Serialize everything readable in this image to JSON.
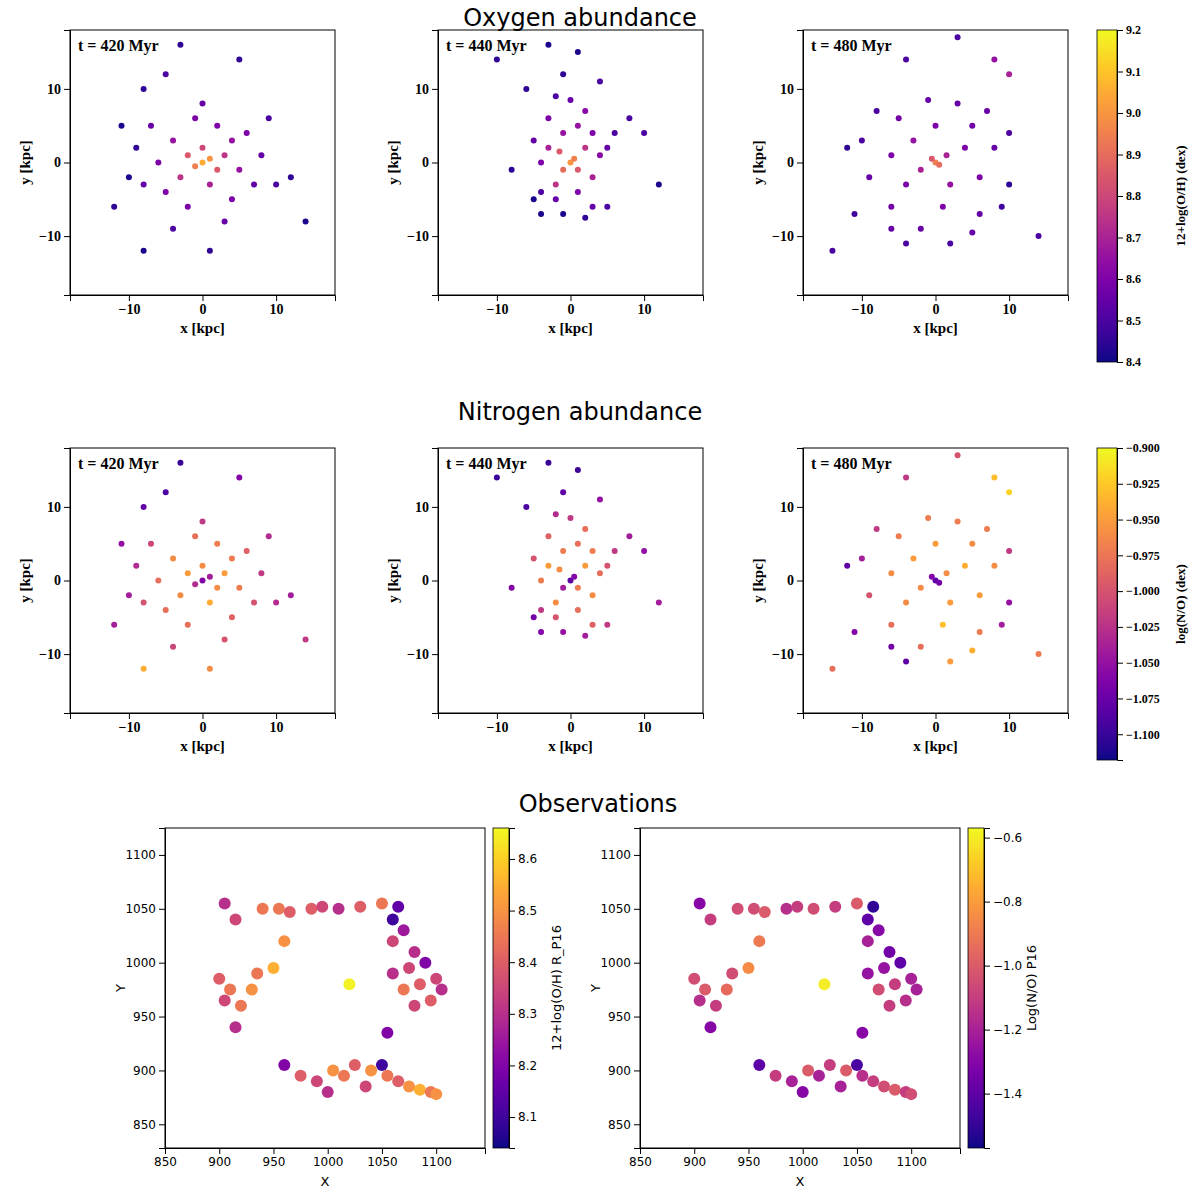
{
  "section_titles": [
    "Oxygen abundance",
    "Nitrogen abundance",
    "Observations"
  ],
  "chart_data": [
    {
      "type": "scatter",
      "annotation": "t = 420 Myr",
      "x_label": "x [kpc]",
      "y_label": "y [kpc]",
      "xlim": [
        -18,
        18
      ],
      "ylim": [
        -18,
        18
      ],
      "xticks": [
        {
          "value": -10,
          "label": "−10"
        },
        0,
        10
      ],
      "yticks": [
        {
          "value": -10,
          "label": "−10"
        },
        0,
        10
      ],
      "x": [
        0,
        1,
        -1,
        2,
        -2,
        0,
        3,
        -3,
        1,
        4,
        -4,
        5,
        -5,
        2,
        -1,
        4,
        -6,
        6,
        -2,
        7,
        -7,
        -8,
        3,
        -4,
        8,
        0,
        -9,
        -10,
        -11,
        -8,
        -5,
        10,
        12,
        9,
        -3,
        5,
        -12,
        14,
        -8,
        1
      ],
      "values": [
        0,
        0.5,
        -0.5,
        -1,
        1,
        2,
        1,
        -2,
        -3,
        3,
        3,
        -1,
        -4,
        5,
        6,
        -5,
        0,
        4,
        -6,
        -3,
        5,
        -3,
        -8,
        -9,
        1,
        8,
        2,
        -2,
        5,
        10,
        12,
        -3,
        -2,
        6,
        16,
        14,
        -6,
        -8,
        -12,
        -12
      ],
      "color_values": [
        9.05,
        9.0,
        8.95,
        8.85,
        8.85,
        8.8,
        8.75,
        8.75,
        8.7,
        8.65,
        8.65,
        8.65,
        8.6,
        8.6,
        8.6,
        8.6,
        8.6,
        8.6,
        8.6,
        8.55,
        8.55,
        8.55,
        8.55,
        8.5,
        8.55,
        8.55,
        8.45,
        8.42,
        8.42,
        8.45,
        8.5,
        8.5,
        8.45,
        8.5,
        8.45,
        8.45,
        8.45,
        8.42,
        8.42,
        8.45
      ]
    },
    {
      "type": "scatter",
      "annotation": "t = 440 Myr",
      "x_label": "x [kpc]",
      "y_label": "y [kpc]",
      "xlim": [
        -18,
        18
      ],
      "ylim": [
        -18,
        18
      ],
      "xticks": [
        {
          "value": -10,
          "label": "−10"
        },
        0,
        10
      ],
      "yticks": [
        {
          "value": -10,
          "label": "−10"
        },
        0,
        10
      ],
      "x": [
        0,
        0.5,
        -1,
        1,
        -1.5,
        2,
        -2,
        -3,
        3,
        -1,
        1,
        -3,
        2,
        -4,
        4,
        -2,
        1,
        3,
        -4,
        -5,
        0,
        -2,
        3,
        5,
        6,
        8,
        10,
        -4,
        -1,
        2,
        5,
        -5,
        -1,
        1,
        -3,
        -6,
        4,
        -8,
        12,
        -10
      ],
      "values": [
        0,
        0.5,
        -1,
        -1,
        1.5,
        2,
        -3,
        2,
        -2,
        4,
        5,
        6,
        7,
        0,
        1,
        -5,
        -4,
        -6,
        -4,
        3,
        8.5,
        9,
        4,
        2,
        4,
        6,
        4,
        -7,
        -7,
        -7.5,
        -6,
        -5,
        12,
        15,
        16,
        10,
        11,
        -1,
        -3,
        14
      ],
      "color_values": [
        9.0,
        8.95,
        8.9,
        8.85,
        8.85,
        8.75,
        8.75,
        8.7,
        8.7,
        8.65,
        8.65,
        8.6,
        8.62,
        8.6,
        8.62,
        8.55,
        8.6,
        8.55,
        8.5,
        8.55,
        8.55,
        8.5,
        8.6,
        8.55,
        8.5,
        8.5,
        8.5,
        8.42,
        8.42,
        8.45,
        8.5,
        8.42,
        8.45,
        8.42,
        8.42,
        8.45,
        8.5,
        8.45,
        8.42,
        8.45
      ]
    },
    {
      "type": "scatter",
      "annotation": "t = 480 Myr",
      "x_label": "x [kpc]",
      "y_label": "y [kpc]",
      "xlim": [
        -18,
        18
      ],
      "ylim": [
        -18,
        18
      ],
      "xticks": [
        {
          "value": -10,
          "label": "−10"
        },
        0,
        10
      ],
      "yticks": [
        {
          "value": -10,
          "label": "−10"
        },
        0,
        10
      ],
      "x": [
        0,
        0.5,
        -0.5,
        1.5,
        -2,
        2,
        -3,
        4,
        -4,
        0,
        1,
        -6,
        6,
        5,
        -5,
        -6,
        6,
        -2,
        3,
        -1,
        8,
        -9,
        -10,
        -12,
        -11,
        10,
        10,
        9,
        -4,
        2,
        -6,
        7,
        -8,
        5,
        8,
        10,
        3,
        -4,
        14,
        -14
      ],
      "values": [
        0,
        -0.3,
        0.5,
        1,
        -1,
        -3,
        3,
        2,
        -3,
        5,
        -6,
        1,
        -2,
        5,
        6,
        -6,
        -7,
        -9,
        8,
        8.5,
        2,
        -2,
        3,
        2,
        -7,
        -3,
        4,
        -6,
        -11,
        -11,
        -9,
        7,
        7,
        -9.5,
        14,
        12,
        17,
        14,
        -10,
        -12
      ],
      "color_values": [
        8.95,
        8.9,
        8.85,
        8.7,
        8.7,
        8.65,
        8.65,
        8.6,
        8.6,
        8.6,
        8.6,
        8.6,
        8.6,
        8.58,
        8.58,
        8.58,
        8.55,
        8.55,
        8.55,
        8.55,
        8.55,
        8.55,
        8.5,
        8.45,
        8.48,
        8.45,
        8.5,
        8.48,
        8.5,
        8.5,
        8.55,
        8.55,
        8.5,
        8.55,
        8.65,
        8.7,
        8.5,
        8.5,
        8.5,
        8.5
      ],
      "colorbar": {
        "label": "12+log(O/H) (dex)",
        "range": [
          8.4,
          9.2
        ],
        "ticks": [
          8.4,
          8.5,
          8.6,
          8.7,
          8.8,
          8.9,
          {
            "value": 9,
            "label": "9.0"
          },
          9.1,
          9.2
        ]
      }
    },
    {
      "type": "scatter",
      "annotation": "t = 420 Myr",
      "x_label": "x [kpc]",
      "y_label": "y [kpc]",
      "xlim": [
        -18,
        18
      ],
      "ylim": [
        -18,
        18
      ],
      "xticks": [
        {
          "value": -10,
          "label": "−10"
        },
        0,
        10
      ],
      "yticks": [
        {
          "value": -10,
          "label": "−10"
        },
        0,
        10
      ],
      "x": [
        0,
        1,
        -1,
        2,
        -2,
        0,
        3,
        -3,
        1,
        4,
        -4,
        5,
        -5,
        2,
        -1,
        4,
        -6,
        6,
        -2,
        7,
        -7,
        -8,
        3,
        -4,
        8,
        0,
        -9,
        -10,
        -11,
        -8,
        -5,
        10,
        12,
        9,
        -3,
        5,
        -12,
        14,
        -8,
        1
      ],
      "values": [
        0,
        0.5,
        -0.5,
        -1,
        1,
        2,
        1,
        -2,
        -3,
        3,
        3,
        -1,
        -4,
        5,
        6,
        -5,
        0,
        4,
        -6,
        -3,
        5,
        -3,
        -8,
        -9,
        1,
        8,
        2,
        -2,
        5,
        10,
        12,
        -3,
        -2,
        6,
        16,
        14,
        -6,
        -8,
        -12,
        -12
      ],
      "color_values": [
        -1.06,
        -1.04,
        -1.03,
        -0.96,
        -0.95,
        -0.96,
        -0.95,
        -0.96,
        -0.94,
        -0.97,
        -0.96,
        -0.97,
        -0.98,
        -0.97,
        -0.98,
        -0.99,
        -0.98,
        -0.99,
        -0.98,
        -1.0,
        -1.01,
        -1.0,
        -1.0,
        -1.01,
        -1.02,
        -1.02,
        -1.03,
        -1.04,
        -1.05,
        -1.08,
        -1.09,
        -1.03,
        -1.04,
        -1.03,
        -1.1,
        -1.06,
        -1.04,
        -1.02,
        -0.94,
        -0.96
      ]
    },
    {
      "type": "scatter",
      "annotation": "t = 440 Myr",
      "x_label": "x [kpc]",
      "y_label": "y [kpc]",
      "xlim": [
        -18,
        18
      ],
      "ylim": [
        -18,
        18
      ],
      "xticks": [
        {
          "value": -10,
          "label": "−10"
        },
        0,
        10
      ],
      "yticks": [
        {
          "value": -10,
          "label": "−10"
        },
        0,
        10
      ],
      "x": [
        0,
        0.5,
        -1,
        1,
        -1.5,
        2,
        -2,
        -3,
        3,
        -1,
        1,
        -3,
        2,
        -4,
        4,
        -2,
        1,
        3,
        -4,
        -5,
        0,
        -2,
        3,
        5,
        6,
        8,
        10,
        -4,
        -1,
        2,
        5,
        -5,
        -1,
        1,
        -3,
        -6,
        4,
        -8,
        12,
        -10
      ],
      "values": [
        0,
        0.5,
        -1,
        -1,
        1.5,
        2,
        -3,
        2,
        -2,
        4,
        5,
        6,
        7,
        0,
        1,
        -5,
        -4,
        -6,
        -4,
        3,
        8.5,
        9,
        4,
        2,
        4,
        6,
        4,
        -7,
        -7,
        -7.5,
        -6,
        -5,
        12,
        15,
        16,
        10,
        11,
        -1,
        -3,
        14
      ],
      "color_values": [
        -1.08,
        -1.06,
        -1.04,
        -0.97,
        -0.96,
        -0.95,
        -0.96,
        -0.95,
        -0.96,
        -0.97,
        -0.98,
        -0.99,
        -0.98,
        -0.97,
        -0.98,
        -1.0,
        -0.98,
        -0.99,
        -1.02,
        -1.0,
        -1.02,
        -1.03,
        -0.97,
        -1.0,
        -1.02,
        -1.04,
        -1.05,
        -1.06,
        -1.05,
        -1.04,
        -1.02,
        -1.07,
        -1.08,
        -1.1,
        -1.1,
        -1.09,
        -1.05,
        -1.06,
        -1.04,
        -1.1
      ]
    },
    {
      "type": "scatter",
      "annotation": "t = 480 Myr",
      "x_label": "x [kpc]",
      "y_label": "y [kpc]",
      "xlim": [
        -18,
        18
      ],
      "ylim": [
        -18,
        18
      ],
      "xticks": [
        {
          "value": -10,
          "label": "−10"
        },
        0,
        10
      ],
      "yticks": [
        {
          "value": -10,
          "label": "−10"
        },
        0,
        10
      ],
      "x": [
        0,
        0.5,
        -0.5,
        1.5,
        -2,
        2,
        -3,
        4,
        -4,
        0,
        1,
        -6,
        6,
        5,
        -5,
        -6,
        6,
        -2,
        3,
        -1,
        8,
        -9,
        -10,
        -12,
        -11,
        10,
        10,
        9,
        -4,
        2,
        -6,
        7,
        -8,
        5,
        8,
        10,
        3,
        -4,
        14,
        -14
      ],
      "values": [
        0,
        -0.3,
        0.5,
        1,
        -1,
        -3,
        3,
        2,
        -3,
        5,
        -6,
        1,
        -2,
        5,
        6,
        -6,
        -7,
        -9,
        8,
        8.5,
        2,
        -2,
        3,
        2,
        -7,
        -3,
        4,
        -6,
        -11,
        -11,
        -9,
        7,
        7,
        -9.5,
        14,
        12,
        17,
        14,
        -10,
        -12
      ],
      "color_values": [
        -1.08,
        -1.07,
        -1.06,
        -0.96,
        -0.96,
        -0.95,
        -0.95,
        -0.94,
        -0.96,
        -0.95,
        -0.93,
        -0.96,
        -0.95,
        -0.96,
        -0.97,
        -0.98,
        -0.97,
        -0.98,
        -0.97,
        -0.97,
        -0.96,
        -1.0,
        -1.04,
        -1.08,
        -1.06,
        -1.05,
        -1.02,
        -1.04,
        -1.08,
        -0.95,
        -1.07,
        -0.97,
        -1.02,
        -0.94,
        -0.93,
        -0.92,
        -1.0,
        -1.02,
        -0.97,
        -0.98
      ],
      "colorbar": {
        "label": "log(N/O) (dex)",
        "range": [
          -1.118,
          -0.9
        ],
        "ticks": [
          {
            "value": -1.1,
            "label": "−1.100"
          },
          {
            "value": -1.075,
            "label": "−1.075"
          },
          {
            "value": -1.05,
            "label": "−1.050"
          },
          {
            "value": -1.025,
            "label": "−1.025"
          },
          {
            "value": -1,
            "label": "−1.000"
          },
          {
            "value": -0.975,
            "label": "−0.975"
          },
          {
            "value": -0.95,
            "label": "−0.950"
          },
          {
            "value": -0.925,
            "label": "−0.925"
          },
          {
            "value": -0.9,
            "label": "−0.900"
          }
        ]
      }
    },
    {
      "type": "scatter",
      "x_label": "X",
      "y_label": "Y",
      "xlim": [
        850,
        1145
      ],
      "ylim": [
        828,
        1125
      ],
      "xticks": [
        850,
        900,
        950,
        1000,
        1050,
        1100
      ],
      "yticks": [
        850,
        900,
        950,
        1000,
        1050,
        1100
      ],
      "x": [
        905,
        915,
        940,
        955,
        965,
        985,
        995,
        1010,
        1030,
        1050,
        1060,
        1065,
        1070,
        1060,
        1080,
        1075,
        1090,
        1085,
        1100,
        1070,
        1095,
        1080,
        1105,
        1060,
        900,
        910,
        920,
        905,
        930,
        935,
        950,
        915,
        960,
        1020,
        1055,
        1050,
        960,
        975,
        990,
        1005,
        1015,
        1025,
        1040,
        1055,
        1065,
        1075,
        1085,
        1095,
        1100,
        1035,
        1000
      ],
      "values": [
        1055,
        1040,
        1050,
        1050,
        1047,
        1050,
        1052,
        1050,
        1052,
        1055,
        1040,
        1052,
        1030,
        1020,
        1010,
        995,
        1000,
        980,
        985,
        975,
        965,
        960,
        975,
        990,
        985,
        975,
        960,
        965,
        975,
        990,
        995,
        940,
        1020,
        980,
        935,
        905,
        905,
        895,
        890,
        900,
        895,
        905,
        900,
        895,
        890,
        885,
        882,
        880,
        878,
        885,
        880
      ],
      "color_values": [
        8.3,
        8.35,
        8.45,
        8.45,
        8.4,
        8.4,
        8.35,
        8.3,
        8.4,
        8.45,
        8.1,
        8.15,
        8.25,
        8.35,
        8.3,
        8.35,
        8.2,
        8.4,
        8.35,
        8.45,
        8.4,
        8.35,
        8.3,
        8.3,
        8.4,
        8.45,
        8.45,
        8.35,
        8.5,
        8.45,
        8.55,
        8.3,
        8.5,
        8.65,
        8.2,
        8.1,
        8.2,
        8.4,
        8.35,
        8.5,
        8.45,
        8.4,
        8.5,
        8.45,
        8.4,
        8.5,
        8.55,
        8.45,
        8.5,
        8.35,
        8.3
      ],
      "colorbar": {
        "label": "12+log(O/H) R_P16",
        "range": [
          8.04,
          8.66
        ],
        "ticks": [
          8.1,
          8.2,
          8.3,
          8.4,
          8.5,
          8.6
        ]
      }
    },
    {
      "type": "scatter",
      "x_label": "X",
      "y_label": "Y",
      "xlim": [
        850,
        1145
      ],
      "ylim": [
        828,
        1125
      ],
      "xticks": [
        850,
        900,
        950,
        1000,
        1050,
        1100
      ],
      "yticks": [
        850,
        900,
        950,
        1000,
        1050,
        1100
      ],
      "x": [
        905,
        915,
        940,
        955,
        965,
        985,
        995,
        1010,
        1030,
        1050,
        1060,
        1065,
        1070,
        1060,
        1080,
        1075,
        1090,
        1085,
        1100,
        1070,
        1095,
        1080,
        1105,
        1060,
        900,
        910,
        920,
        905,
        930,
        935,
        950,
        915,
        960,
        1020,
        1055,
        1050,
        960,
        975,
        990,
        1005,
        1015,
        1025,
        1040,
        1055,
        1065,
        1075,
        1085,
        1095,
        1100,
        1035,
        1000
      ],
      "values": [
        1055,
        1040,
        1050,
        1050,
        1047,
        1050,
        1052,
        1050,
        1052,
        1055,
        1040,
        1052,
        1030,
        1020,
        1010,
        995,
        1000,
        980,
        985,
        975,
        965,
        960,
        975,
        990,
        985,
        975,
        960,
        965,
        975,
        990,
        995,
        940,
        1020,
        980,
        935,
        905,
        905,
        895,
        890,
        900,
        895,
        905,
        900,
        895,
        890,
        885,
        882,
        880,
        878,
        885,
        880
      ],
      "color_values": [
        -1.3,
        -1.1,
        -1.05,
        -1.05,
        -1.0,
        -1.15,
        -1.1,
        -1.05,
        -1.1,
        -1.0,
        -1.4,
        -1.5,
        -1.3,
        -1.2,
        -1.35,
        -1.25,
        -1.4,
        -1.1,
        -1.2,
        -1.05,
        -1.15,
        -1.1,
        -1.2,
        -1.25,
        -1.05,
        -1.0,
        -1.1,
        -1.15,
        -0.95,
        -1.05,
        -0.85,
        -1.3,
        -0.9,
        -0.6,
        -1.3,
        -1.45,
        -1.4,
        -1.1,
        -1.2,
        -1.0,
        -1.2,
        -1.1,
        -1.0,
        -1.15,
        -1.1,
        -1.05,
        -1.0,
        -1.1,
        -1.05,
        -1.2,
        -1.3
      ],
      "colorbar": {
        "label": "Log(N/O) P16",
        "range": [
          -1.57,
          -0.57
        ],
        "ticks": [
          {
            "value": -1.4,
            "label": "−1.4"
          },
          {
            "value": -1.2,
            "label": "−1.2"
          },
          {
            "value": -1,
            "label": "−1.0"
          },
          {
            "value": -0.8,
            "label": "−0.8"
          },
          {
            "value": -0.6,
            "label": "−0.6"
          }
        ]
      }
    }
  ]
}
